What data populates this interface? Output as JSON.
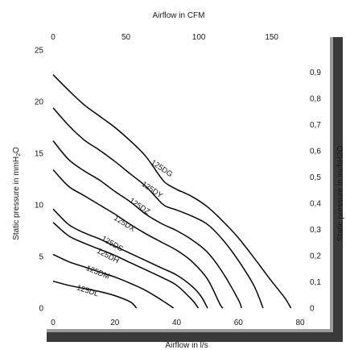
{
  "chart_data": {
    "type": "line",
    "top_axis": {
      "label": "Airflow in CFM",
      "ticks": [
        "0",
        "50",
        "100",
        "150"
      ]
    },
    "bottom_axis": {
      "label": "Airflow in l/s",
      "ticks": [
        "0",
        "20",
        "40",
        "60",
        "80"
      ],
      "range": [
        0,
        80
      ]
    },
    "left_axis": {
      "label": "Static pressure in mmH",
      "label_sub": "2",
      "label_end": "O",
      "ticks": [
        "0",
        "5",
        "10",
        "15",
        "20",
        "25"
      ],
      "range": [
        0,
        25
      ]
    },
    "right_axis": {
      "label": "Static pressure in inchH2O",
      "ticks": [
        "0",
        "0,1",
        "0,2",
        "0,3",
        "0,4",
        "0,5",
        "0,6",
        "0,7",
        "0,8",
        "0,9"
      ]
    },
    "grid": false,
    "series": [
      {
        "name": "125DG",
        "points": [
          [
            0,
            22.6
          ],
          [
            5,
            21.1
          ],
          [
            10,
            19.7
          ],
          [
            15,
            18.6
          ],
          [
            20,
            17.5
          ],
          [
            25,
            16.2
          ],
          [
            30,
            14.7
          ],
          [
            35,
            12.6
          ],
          [
            37,
            12.0
          ],
          [
            40,
            11.5
          ],
          [
            45,
            10.8
          ],
          [
            50,
            9.8
          ],
          [
            55,
            8.4
          ],
          [
            60,
            6.8
          ],
          [
            65,
            4.9
          ],
          [
            70,
            2.9
          ],
          [
            75,
            1.0
          ],
          [
            77,
            0
          ]
        ]
      },
      {
        "name": "125DY",
        "points": [
          [
            0,
            19.4
          ],
          [
            5,
            17.7
          ],
          [
            10,
            16.3
          ],
          [
            15,
            15.3
          ],
          [
            20,
            14.2
          ],
          [
            25,
            13.0
          ],
          [
            30,
            11.8
          ],
          [
            35,
            10.2
          ],
          [
            37,
            9.8
          ],
          [
            40,
            9.5
          ],
          [
            45,
            8.9
          ],
          [
            50,
            8.1
          ],
          [
            55,
            6.6
          ],
          [
            60,
            4.6
          ],
          [
            65,
            2.2
          ],
          [
            68,
            0
          ]
        ]
      },
      {
        "name": "125DZ",
        "points": [
          [
            0,
            16.2
          ],
          [
            5,
            14.4
          ],
          [
            10,
            13.3
          ],
          [
            15,
            12.4
          ],
          [
            20,
            11.3
          ],
          [
            25,
            10.3
          ],
          [
            30,
            9.1
          ],
          [
            35,
            8.2
          ],
          [
            40,
            7.5
          ],
          [
            45,
            6.6
          ],
          [
            50,
            5.4
          ],
          [
            55,
            3.4
          ],
          [
            60,
            0.8
          ],
          [
            61,
            0
          ]
        ]
      },
      {
        "name": "125DX",
        "points": [
          [
            0,
            13.4
          ],
          [
            5,
            11.8
          ],
          [
            10,
            10.9
          ],
          [
            15,
            10.0
          ],
          [
            20,
            9.1
          ],
          [
            25,
            8.1
          ],
          [
            30,
            7.2
          ],
          [
            35,
            6.4
          ],
          [
            40,
            5.6
          ],
          [
            45,
            4.5
          ],
          [
            50,
            2.8
          ],
          [
            54,
            0.4
          ],
          [
            55,
            0
          ]
        ]
      },
      {
        "name": "125DS",
        "points": [
          [
            0,
            9.6
          ],
          [
            5,
            8.1
          ],
          [
            10,
            7.3
          ],
          [
            15,
            6.7
          ],
          [
            20,
            6.0
          ],
          [
            25,
            5.3
          ],
          [
            30,
            4.6
          ],
          [
            35,
            3.9
          ],
          [
            40,
            3.2
          ],
          [
            45,
            2.1
          ],
          [
            48,
            1.1
          ],
          [
            50,
            0
          ]
        ]
      },
      {
        "name": "125DH",
        "points": [
          [
            0,
            8.3
          ],
          [
            5,
            7.0
          ],
          [
            10,
            6.3
          ],
          [
            15,
            5.7
          ],
          [
            20,
            5.1
          ],
          [
            25,
            4.4
          ],
          [
            30,
            3.7
          ],
          [
            35,
            3.0
          ],
          [
            40,
            2.2
          ],
          [
            45,
            0.8
          ],
          [
            47,
            0
          ]
        ]
      },
      {
        "name": "125DM",
        "points": [
          [
            0,
            5.2
          ],
          [
            5,
            4.5
          ],
          [
            10,
            4.0
          ],
          [
            15,
            3.5
          ],
          [
            20,
            3.0
          ],
          [
            25,
            2.4
          ],
          [
            30,
            1.7
          ],
          [
            35,
            0.8
          ],
          [
            39,
            0
          ]
        ]
      },
      {
        "name": "125DL",
        "points": [
          [
            0,
            2.6
          ],
          [
            5,
            2.2
          ],
          [
            10,
            1.9
          ],
          [
            15,
            1.6
          ],
          [
            20,
            1.2
          ],
          [
            25,
            0.6
          ],
          [
            27,
            0
          ]
        ]
      }
    ]
  }
}
